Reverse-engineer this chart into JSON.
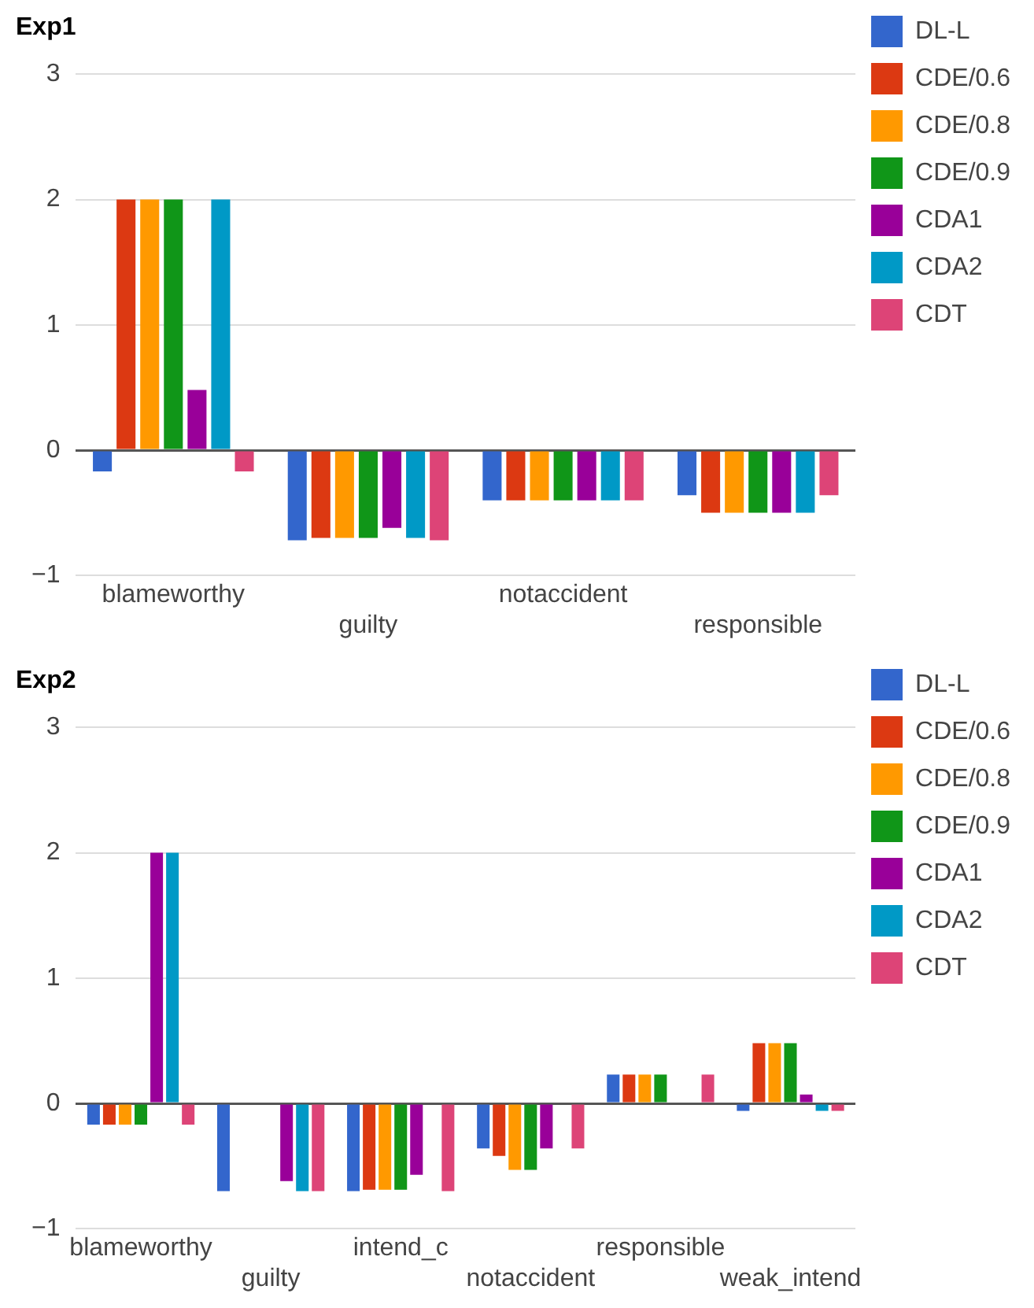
{
  "chart_data": [
    {
      "type": "bar",
      "title": "Exp1",
      "categories": [
        "blameworthy",
        "guilty",
        "notaccident",
        "responsible"
      ],
      "series": [
        {
          "name": "DL-L",
          "color": "#3366cc",
          "values": [
            -0.17,
            -0.72,
            -0.4,
            -0.36
          ]
        },
        {
          "name": "CDE/0.6",
          "color": "#dc3912",
          "values": [
            2,
            -0.7,
            -0.4,
            -0.5
          ]
        },
        {
          "name": "CDE/0.8",
          "color": "#ff9900",
          "values": [
            2,
            -0.7,
            -0.4,
            -0.5
          ]
        },
        {
          "name": "CDE/0.9",
          "color": "#109618",
          "values": [
            2,
            -0.7,
            -0.4,
            -0.5
          ]
        },
        {
          "name": "CDA1",
          "color": "#990099",
          "values": [
            0.48,
            -0.62,
            -0.4,
            -0.5
          ]
        },
        {
          "name": "CDA2",
          "color": "#0099c6",
          "values": [
            2,
            -0.7,
            -0.4,
            -0.5
          ]
        },
        {
          "name": "CDT",
          "color": "#dd4477",
          "values": [
            -0.17,
            -0.72,
            -0.4,
            -0.36
          ]
        }
      ],
      "ylim": [
        -1,
        3
      ],
      "yticks": [
        -1,
        0,
        1,
        2,
        3
      ],
      "grid": "y",
      "legend": "right"
    },
    {
      "type": "bar",
      "title": "Exp2",
      "categories": [
        "blameworthy",
        "guilty",
        "intend_c",
        "notaccident",
        "responsible",
        "weak_intend"
      ],
      "series": [
        {
          "name": "DL-L",
          "color": "#3366cc",
          "values": [
            -0.17,
            -0.7,
            -0.7,
            -0.36,
            0.23,
            -0.06
          ]
        },
        {
          "name": "CDE/0.6",
          "color": "#dc3912",
          "values": [
            -0.17,
            null,
            -0.69,
            -0.42,
            0.23,
            0.48
          ]
        },
        {
          "name": "CDE/0.8",
          "color": "#ff9900",
          "values": [
            -0.17,
            null,
            -0.69,
            -0.53,
            0.23,
            0.48
          ]
        },
        {
          "name": "CDE/0.9",
          "color": "#109618",
          "values": [
            -0.17,
            null,
            -0.69,
            -0.53,
            0.23,
            0.48
          ]
        },
        {
          "name": "CDA1",
          "color": "#990099",
          "values": [
            2,
            -0.62,
            -0.57,
            -0.36,
            null,
            0.07
          ]
        },
        {
          "name": "CDA2",
          "color": "#0099c6",
          "values": [
            2,
            -0.7,
            null,
            null,
            null,
            -0.06
          ]
        },
        {
          "name": "CDT",
          "color": "#dd4477",
          "values": [
            -0.17,
            -0.7,
            -0.7,
            -0.36,
            0.23,
            -0.06
          ]
        }
      ],
      "ylim": [
        -1,
        3
      ],
      "yticks": [
        -1,
        0,
        1,
        2,
        3
      ],
      "grid": "y",
      "legend": "right"
    }
  ]
}
